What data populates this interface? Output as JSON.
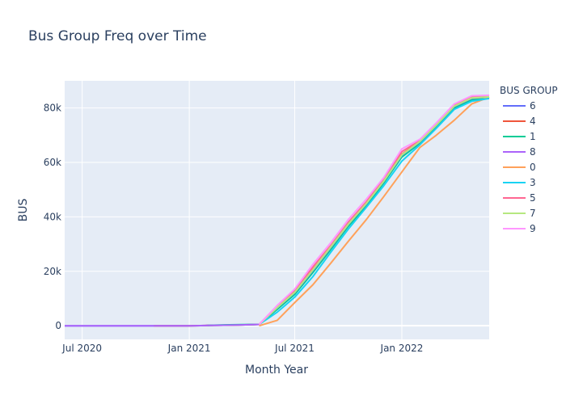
{
  "chart_data": {
    "type": "line",
    "title": "Bus Group Freq over Time",
    "xlabel": "Month Year",
    "ylabel": "BUS",
    "x_tick_labels": [
      "Jul 2020",
      "Jan 2021",
      "Jul 2021",
      "Jan 2022"
    ],
    "y_tick_labels": [
      "0",
      "20k",
      "40k",
      "60k",
      "80k"
    ],
    "y_ticks": [
      0,
      20000,
      40000,
      60000,
      80000
    ],
    "ylim": [
      -5000,
      90000
    ],
    "xlim": [
      "2020-06-01",
      "2022-05-31"
    ],
    "legend_title": "BUS GROUP",
    "legend_position": "right",
    "grid": true,
    "plot_background": "#e5ecf6",
    "x": [
      "2020-06-01",
      "2020-07-01",
      "2020-08-01",
      "2020-09-01",
      "2020-10-01",
      "2020-11-01",
      "2020-12-01",
      "2021-01-01",
      "2021-02-01",
      "2021-03-01",
      "2021-04-01",
      "2021-05-01",
      "2021-06-01",
      "2021-07-01",
      "2021-08-01",
      "2021-09-01",
      "2021-10-01",
      "2021-11-01",
      "2021-12-01",
      "2022-01-01",
      "2022-02-01",
      "2022-03-01",
      "2022-04-01",
      "2022-05-01",
      "2022-05-31"
    ],
    "series": [
      {
        "name": "6",
        "color": "#636efa",
        "values": [
          0,
          0,
          0,
          0,
          0,
          0,
          0,
          0,
          100,
          200,
          300,
          500,
          6500,
          12000,
          20000,
          28500,
          37000,
          44500,
          53000,
          62500,
          67500,
          73500,
          80500,
          83500,
          84000
        ]
      },
      {
        "name": "4",
        "color": "#EF553B",
        "values": [
          null,
          null,
          null,
          null,
          null,
          0,
          0,
          0,
          100,
          200,
          300,
          500,
          6800,
          12500,
          20800,
          29000,
          37500,
          45000,
          53300,
          63000,
          67800,
          73800,
          80800,
          83800,
          84200
        ]
      },
      {
        "name": "1",
        "color": "#00cc96",
        "values": [
          null,
          null,
          null,
          null,
          null,
          null,
          null,
          null,
          100,
          300,
          400,
          500,
          6000,
          11500,
          19500,
          28000,
          36500,
          44000,
          52500,
          62000,
          67000,
          73000,
          80000,
          83000,
          83800
        ]
      },
      {
        "name": "8",
        "color": "#ab63fa",
        "values": [
          0,
          0,
          0,
          0,
          0,
          0,
          0,
          0,
          100,
          200,
          300,
          500,
          6600,
          12200,
          20300,
          28800,
          37200,
          44800,
          53100,
          62700,
          67600,
          73600,
          80600,
          83600,
          84100
        ]
      },
      {
        "name": "0",
        "color": "#FFA15A",
        "values": [
          null,
          null,
          null,
          null,
          null,
          null,
          null,
          null,
          null,
          null,
          null,
          0,
          2000,
          8500,
          15000,
          23000,
          31000,
          39000,
          47500,
          56500,
          65500,
          70000,
          75500,
          81500,
          84000
        ]
      },
      {
        "name": "3",
        "color": "#19d3f3",
        "values": [
          null,
          null,
          null,
          null,
          null,
          null,
          null,
          null,
          null,
          null,
          null,
          500,
          5000,
          10500,
          18000,
          27000,
          35500,
          43500,
          51500,
          60500,
          66500,
          72500,
          79500,
          82500,
          83500
        ]
      },
      {
        "name": "5",
        "color": "#FF6692",
        "values": [
          null,
          null,
          null,
          null,
          null,
          null,
          null,
          null,
          null,
          null,
          null,
          500,
          7000,
          13000,
          21500,
          29500,
          38000,
          45500,
          54000,
          64000,
          68000,
          74000,
          81000,
          84000,
          84300
        ]
      },
      {
        "name": "7",
        "color": "#B6E880",
        "values": [
          null,
          null,
          null,
          null,
          null,
          null,
          null,
          null,
          null,
          null,
          null,
          500,
          6700,
          12300,
          20500,
          29000,
          37300,
          44900,
          53200,
          62800,
          67700,
          73700,
          80700,
          83700,
          84100
        ]
      },
      {
        "name": "9",
        "color": "#FF97FF",
        "values": [
          null,
          null,
          null,
          null,
          null,
          null,
          null,
          null,
          null,
          null,
          null,
          500,
          7500,
          13500,
          22500,
          30500,
          39000,
          46500,
          54500,
          65000,
          68500,
          74500,
          81500,
          84500,
          84700
        ]
      }
    ]
  }
}
